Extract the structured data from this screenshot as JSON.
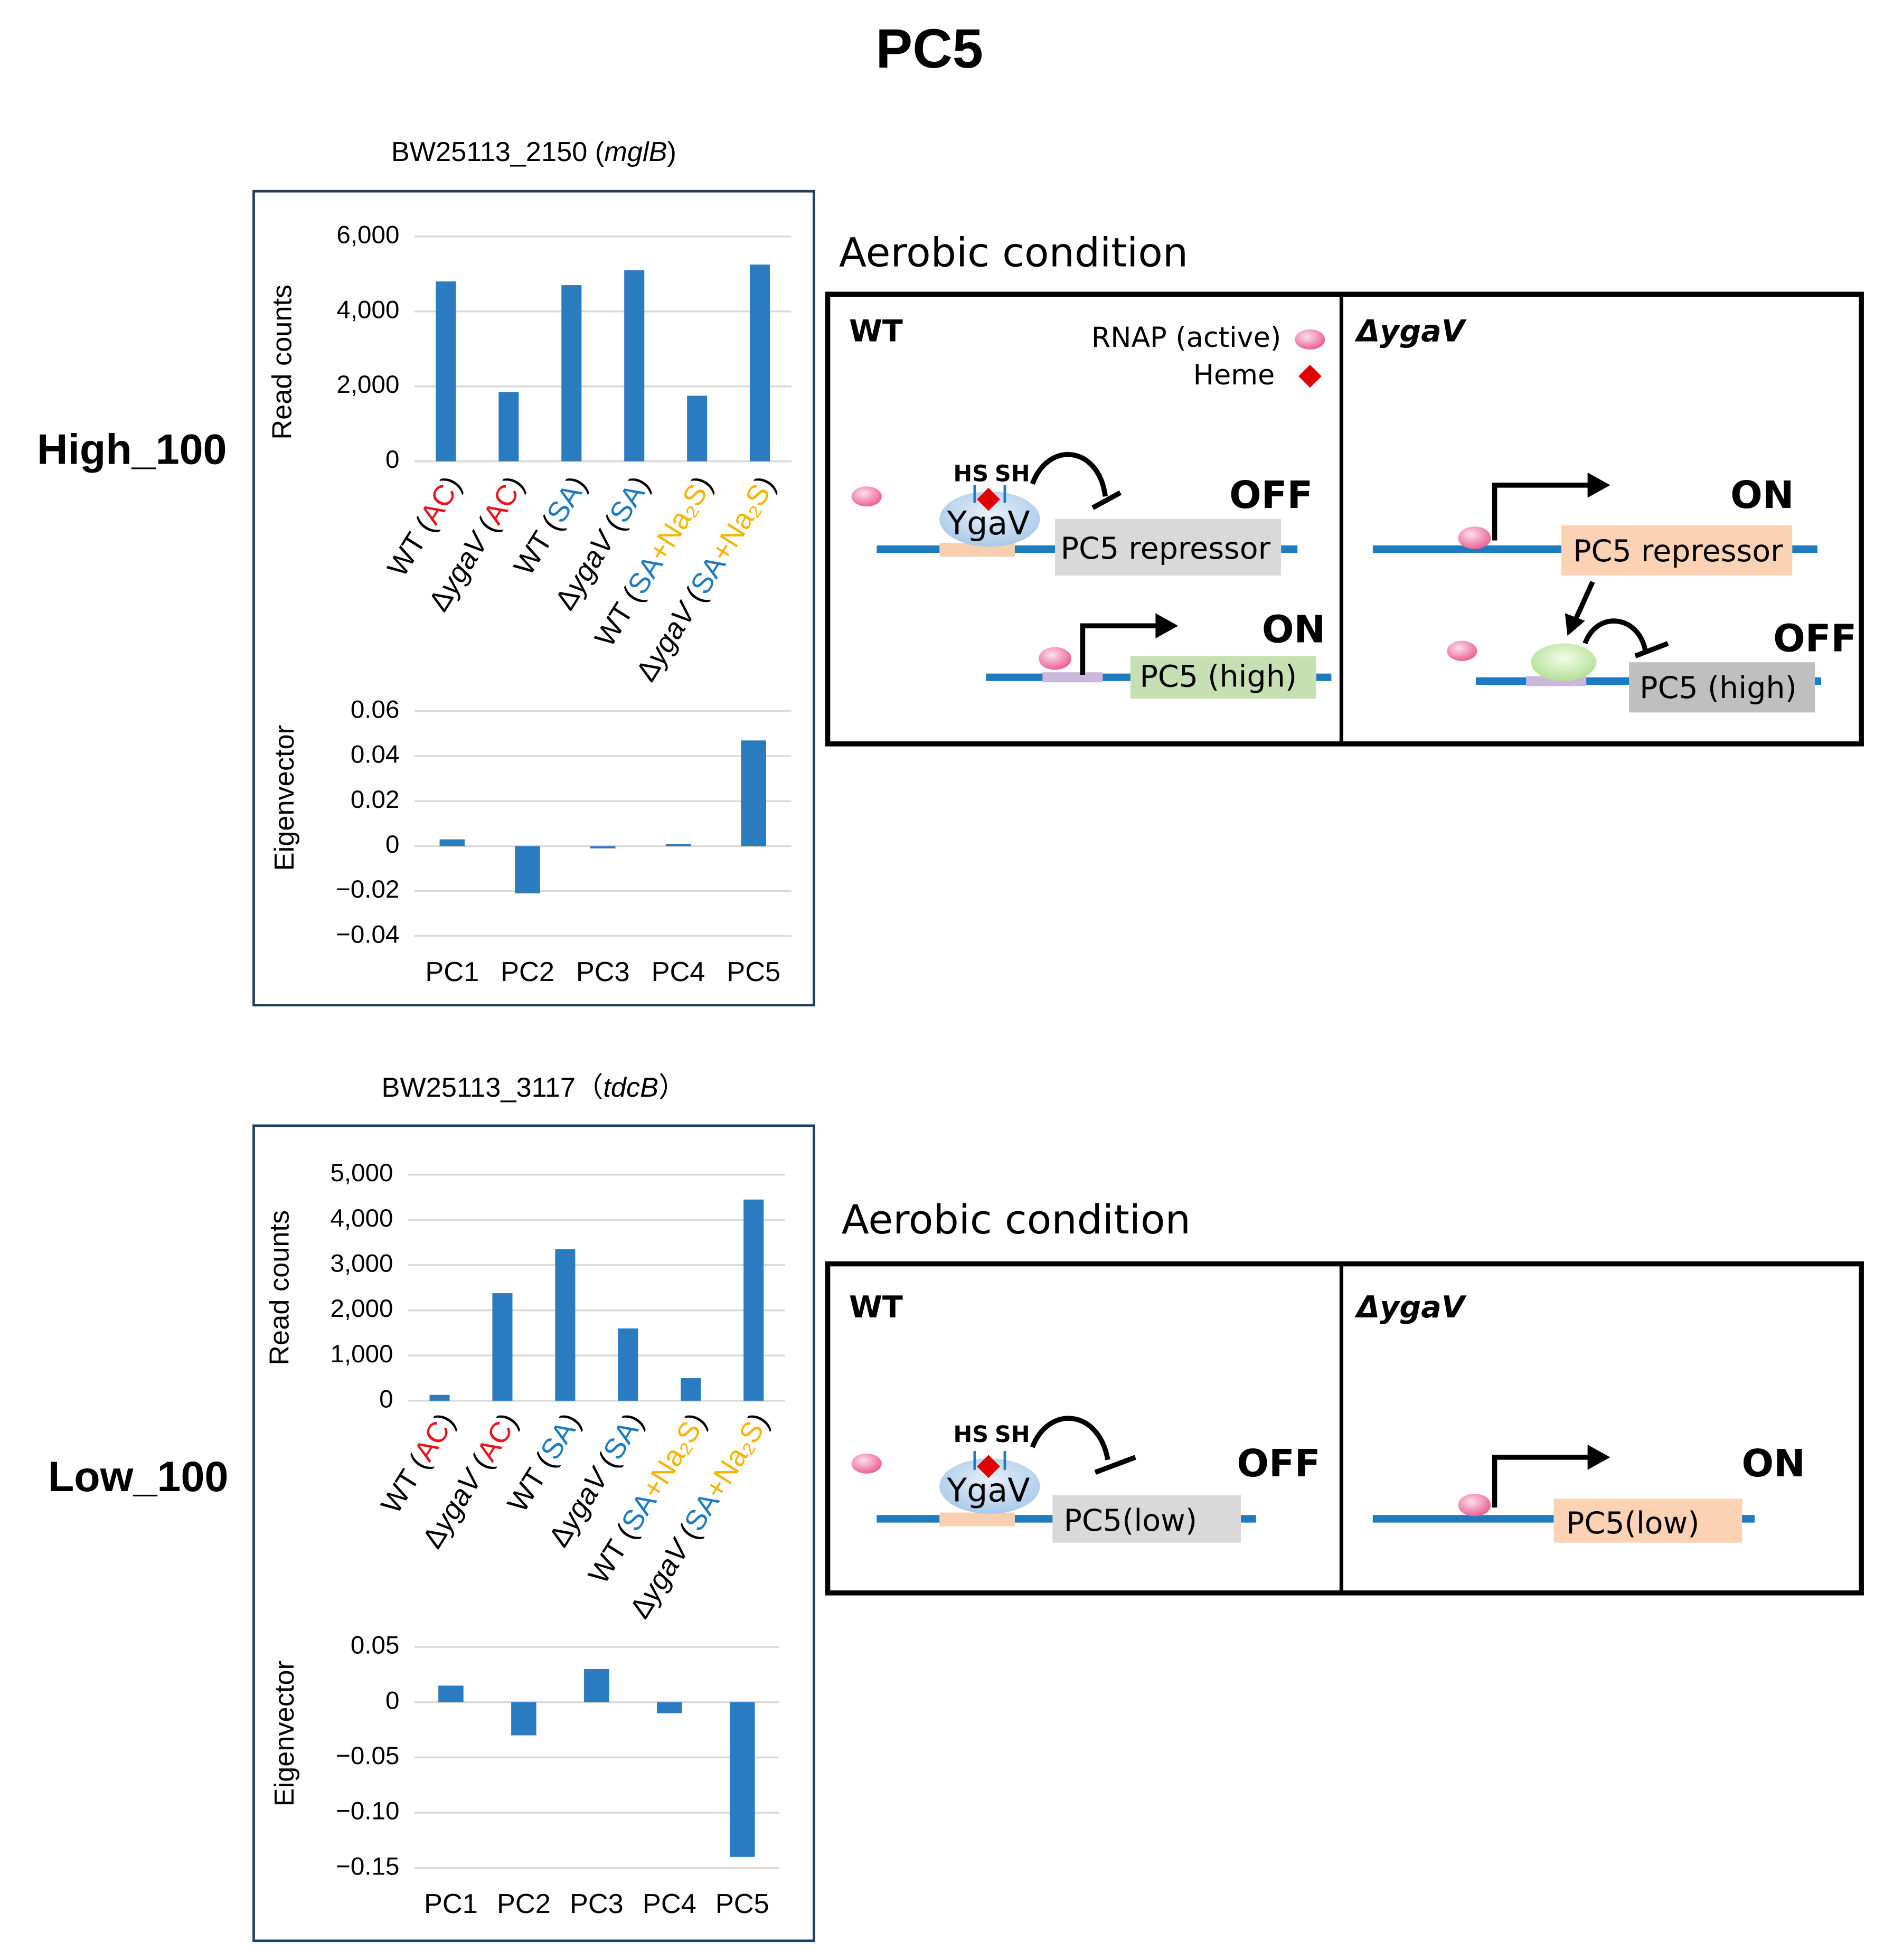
{
  "title": "PC5",
  "rows": [
    "High_100",
    "Low_100"
  ],
  "chart_data": [
    {
      "type": "bar",
      "title": "BW25113_2150 (mglB)",
      "ylabel": "Read counts",
      "categories": [
        "WT (AC)",
        "ΔygaV (AC)",
        "WT (SA)",
        "ΔygaV (SA)",
        "WT (SA+Na₂S)",
        "ΔygaV (SA+Na₂S)"
      ],
      "values": [
        4800,
        1850,
        4700,
        5100,
        1750,
        5250
      ],
      "color": "#2b7bc1",
      "ylim": [
        0,
        6000
      ],
      "yticks": [
        0,
        {
          "value": 2000,
          "label": "2,000"
        },
        {
          "value": 4000,
          "label": "4,000"
        },
        {
          "value": 6000,
          "label": "6,000"
        }
      ],
      "grid": true,
      "label_styles": {
        "AC": {
          "color": "#e8141b"
        },
        "SA": {
          "color": "#1f7bbf"
        },
        "+Na₂S": {
          "color": "#f5b400"
        },
        "ygaV": {
          "italic": true
        },
        "mglB": {
          "italic": true
        }
      }
    },
    {
      "type": "bar",
      "ylabel": "Eigenvector",
      "categories": [
        "PC1",
        "PC2",
        "PC3",
        "PC4",
        "PC5"
      ],
      "values": [
        0.003,
        -0.021,
        -0.001,
        0.001,
        0.047
      ],
      "color": "#2b7bc1",
      "ylim": [
        -0.04,
        0.06
      ],
      "yticks": [
        {
          "value": -0.04,
          "label": "−0.04"
        },
        {
          "value": -0.02,
          "label": "−0.02"
        },
        0,
        0.02,
        0.04,
        0.06
      ],
      "grid": true
    },
    {
      "type": "bar",
      "title": "BW25113_3117（tdcB）",
      "ylabel": "Read counts",
      "categories": [
        "WT (AC)",
        "ΔygaV (AC)",
        "WT (SA)",
        "ΔygaV (SA)",
        "WT (SA+Na₂S)",
        "ΔygaV (SA+Na₂S)"
      ],
      "values": [
        130,
        2380,
        3350,
        1600,
        500,
        4450
      ],
      "color": "#2b7bc1",
      "ylim": [
        0,
        5000
      ],
      "yticks": [
        0,
        {
          "value": 1000,
          "label": "1,000"
        },
        {
          "value": 2000,
          "label": "2,000"
        },
        {
          "value": 3000,
          "label": "3,000"
        },
        {
          "value": 4000,
          "label": "4,000"
        },
        {
          "value": 5000,
          "label": "5,000"
        }
      ],
      "grid": true,
      "label_styles": {
        "AC": {
          "color": "#e8141b"
        },
        "SA": {
          "color": "#1f7bbf"
        },
        "+Na₂S": {
          "color": "#f5b400"
        },
        "ygaV": {
          "italic": true
        },
        "tdcB": {
          "italic": true
        }
      }
    },
    {
      "type": "bar",
      "ylabel": "Eigenvector",
      "categories": [
        "PC1",
        "PC2",
        "PC3",
        "PC4",
        "PC5"
      ],
      "values": [
        0.015,
        -0.03,
        0.03,
        -0.01,
        -0.14
      ],
      "color": "#2b7bc1",
      "ylim": [
        -0.15,
        0.05
      ],
      "yticks": [
        {
          "value": -0.15,
          "label": "−0.15"
        },
        {
          "value": -0.1,
          "label": "−0.10"
        },
        {
          "value": -0.05,
          "label": "−0.05"
        },
        0,
        0.05
      ],
      "grid": true
    }
  ],
  "diagrams": [
    {
      "title": "Aerobic condition",
      "legend": [
        "RNAP (active)",
        "Heme"
      ],
      "panels": [
        {
          "label": "WT",
          "texts": [
            "HS",
            "SH",
            "YgaV",
            "OFF",
            "PC5 repressor",
            "ON",
            "PC5 (high)"
          ]
        },
        {
          "label": "ΔygaV",
          "texts": [
            "ON",
            "PC5 repressor",
            "OFF",
            "PC5 (high)"
          ]
        }
      ]
    },
    {
      "title": "Aerobic condition",
      "panels": [
        {
          "label": "WT",
          "texts": [
            "HS",
            "SH",
            "YgaV",
            "OFF",
            "PC5(low)"
          ]
        },
        {
          "label": "ΔygaV",
          "texts": [
            "ON",
            "PC5(low)"
          ]
        }
      ]
    }
  ]
}
